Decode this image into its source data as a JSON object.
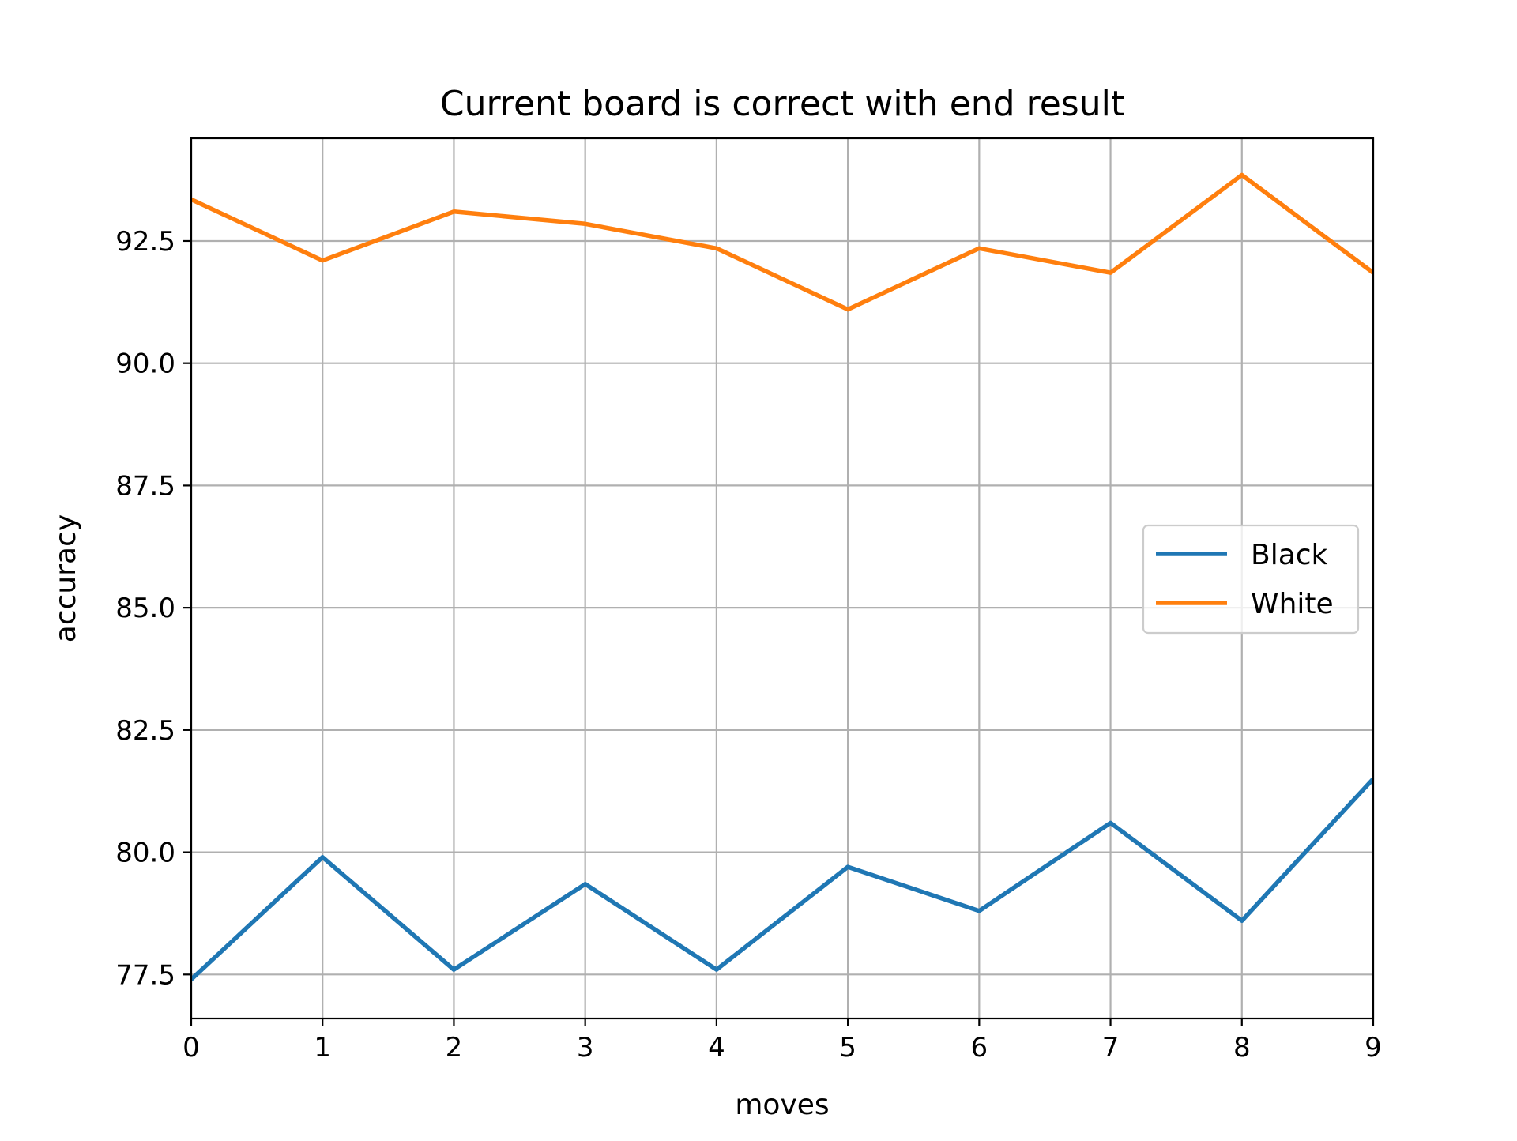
{
  "chart_data": {
    "type": "line",
    "title": "Current board is correct with end result",
    "xlabel": "moves",
    "ylabel": "accuracy",
    "x": [
      0,
      1,
      2,
      3,
      4,
      5,
      6,
      7,
      8,
      9
    ],
    "xticks": [
      "0",
      "1",
      "2",
      "3",
      "4",
      "5",
      "6",
      "7",
      "8",
      "9"
    ],
    "yticks": [
      "77.5",
      "80.0",
      "82.5",
      "85.0",
      "87.5",
      "90.0",
      "92.5"
    ],
    "xlim": [
      0,
      9
    ],
    "ylim": [
      76.6,
      94.6
    ],
    "grid": true,
    "legend_position": "center-right",
    "series": [
      {
        "name": "Black",
        "color": "#1f77b4",
        "values": [
          77.4,
          79.9,
          77.6,
          79.35,
          77.6,
          79.7,
          78.8,
          80.6,
          78.6,
          81.5
        ]
      },
      {
        "name": "White",
        "color": "#ff7f0e",
        "values": [
          93.35,
          92.1,
          93.1,
          92.85,
          92.35,
          91.1,
          92.35,
          91.85,
          93.85,
          91.85
        ]
      }
    ]
  }
}
